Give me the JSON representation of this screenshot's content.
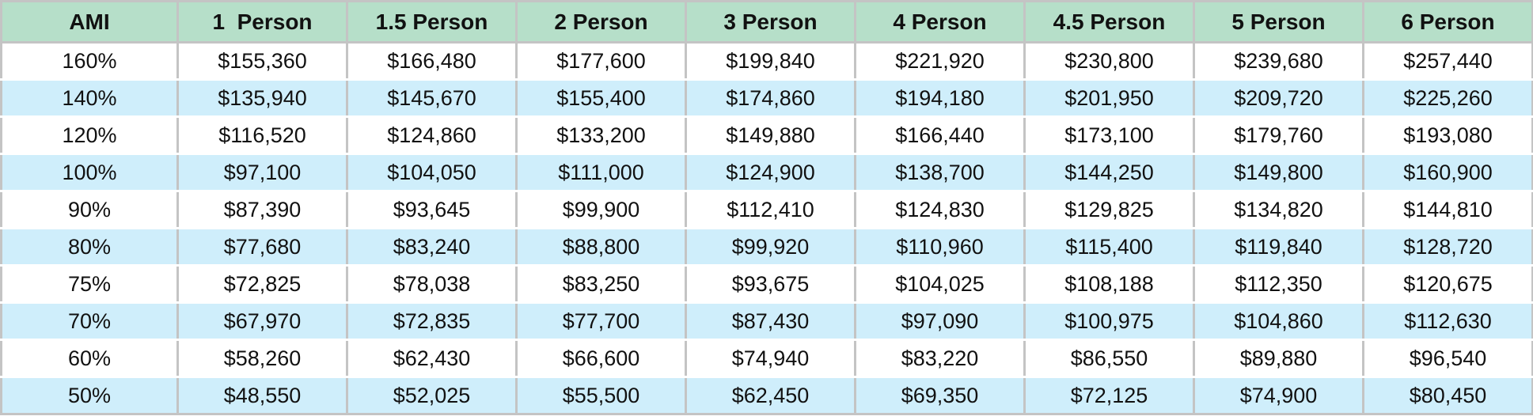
{
  "table": {
    "headers": [
      "AMI",
      "1  Person",
      "1.5 Person",
      "2 Person",
      "3 Person",
      "4 Person",
      "4.5 Person",
      "5 Person",
      "6 Person"
    ],
    "rows": [
      [
        "160%",
        "$155,360",
        "$166,480",
        "$177,600",
        "$199,840",
        "$221,920",
        "$230,800",
        "$239,680",
        "$257,440"
      ],
      [
        "140%",
        "$135,940",
        "$145,670",
        "$155,400",
        "$174,860",
        "$194,180",
        "$201,950",
        "$209,720",
        "$225,260"
      ],
      [
        "120%",
        "$116,520",
        "$124,860",
        "$133,200",
        "$149,880",
        "$166,440",
        "$173,100",
        "$179,760",
        "$193,080"
      ],
      [
        "100%",
        "$97,100",
        "$104,050",
        "$111,000",
        "$124,900",
        "$138,700",
        "$144,250",
        "$149,800",
        "$160,900"
      ],
      [
        "90%",
        "$87,390",
        "$93,645",
        "$99,900",
        "$112,410",
        "$124,830",
        "$129,825",
        "$134,820",
        "$144,810"
      ],
      [
        "80%",
        "$77,680",
        "$83,240",
        "$88,800",
        "$99,920",
        "$110,960",
        "$115,400",
        "$119,840",
        "$128,720"
      ],
      [
        "75%",
        "$72,825",
        "$78,038",
        "$83,250",
        "$93,675",
        "$104,025",
        "$108,188",
        "$112,350",
        "$120,675"
      ],
      [
        "70%",
        "$67,970",
        "$72,835",
        "$77,700",
        "$87,430",
        "$97,090",
        "$100,975",
        "$104,860",
        "$112,630"
      ],
      [
        "60%",
        "$58,260",
        "$62,430",
        "$66,600",
        "$74,940",
        "$83,220",
        "$86,550",
        "$89,880",
        "$96,540"
      ],
      [
        "50%",
        "$48,550",
        "$52,025",
        "$55,500",
        "$62,450",
        "$69,350",
        "$72,125",
        "$74,900",
        "$80,450"
      ]
    ]
  },
  "colors": {
    "header_bg": "#b6dfc9",
    "stripe_bg": "#cfeefb",
    "row_bg": "#ffffff",
    "grid_line": "#c4c4c4"
  }
}
